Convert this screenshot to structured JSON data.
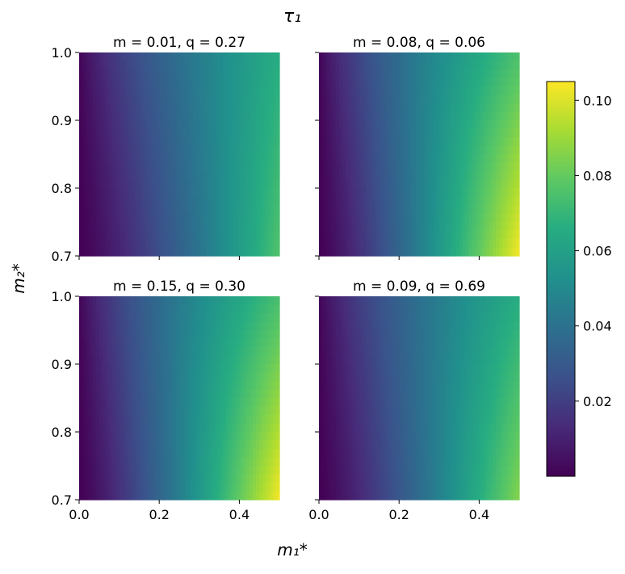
{
  "chart_data": {
    "type": "heatmap",
    "suptitle": "τ₁",
    "xlabel": "m₁*",
    "ylabel": "m₂*",
    "xlim": [
      0.0,
      0.5
    ],
    "ylim": [
      0.7,
      1.0
    ],
    "xticks": [
      "0.0",
      "0.2",
      "0.4"
    ],
    "yticks": [
      "0.7",
      "0.8",
      "0.9",
      "1.0"
    ],
    "colormap": "viridis",
    "colorbar": {
      "range": [
        0.0,
        0.105
      ],
      "ticks": [
        "0.02",
        "0.04",
        "0.06",
        "0.08",
        "0.10"
      ]
    },
    "panels": [
      {
        "title": "m = 0.01, q = 0.27",
        "corner_values": {
          "x0_y1": 0.0,
          "x05_y1": 0.066,
          "x0_y07": 0.0,
          "x05_y07": 0.076
        }
      },
      {
        "title": "m = 0.08, q = 0.06",
        "corner_values": {
          "x0_y1": 0.0,
          "x05_y1": 0.075,
          "x0_y07": 0.0,
          "x05_y07": 0.104
        }
      },
      {
        "title": "m = 0.15, q = 0.30",
        "corner_values": {
          "x0_y1": 0.0,
          "x05_y1": 0.074,
          "x0_y07": 0.0,
          "x05_y07": 0.104
        }
      },
      {
        "title": "m = 0.09, q = 0.69",
        "corner_values": {
          "x0_y1": 0.0,
          "x05_y1": 0.066,
          "x0_y07": 0.0,
          "x05_y07": 0.086
        }
      }
    ]
  }
}
